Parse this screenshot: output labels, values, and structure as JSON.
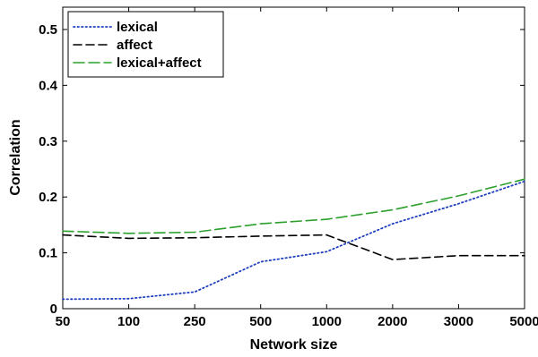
{
  "chart_data": {
    "type": "line",
    "xlabel": "Network size",
    "ylabel": "Correlation",
    "categories": [
      "50",
      "100",
      "250",
      "500",
      "1000",
      "2000",
      "3000",
      "5000"
    ],
    "yticks": [
      "0",
      "0.1",
      "0.2",
      "0.3",
      "0.4",
      "0.5"
    ],
    "ylim": [
      0,
      0.54
    ],
    "grid": false,
    "legend_position": "top-left",
    "series": [
      {
        "name": "lexical",
        "color": "#1f3fbf",
        "style": "dotted",
        "values": [
          0.017,
          0.018,
          0.03,
          0.084,
          0.102,
          0.152,
          0.188,
          0.228
        ]
      },
      {
        "name": "affect",
        "color": "#000000",
        "style": "dashed",
        "values": [
          0.132,
          0.126,
          0.127,
          0.13,
          0.132,
          0.088,
          0.095,
          0.095
        ]
      },
      {
        "name": "lexical+affect",
        "color": "#2ca02c",
        "style": "dashed",
        "values": [
          0.139,
          0.135,
          0.137,
          0.152,
          0.16,
          0.177,
          0.202,
          0.232
        ]
      }
    ]
  }
}
